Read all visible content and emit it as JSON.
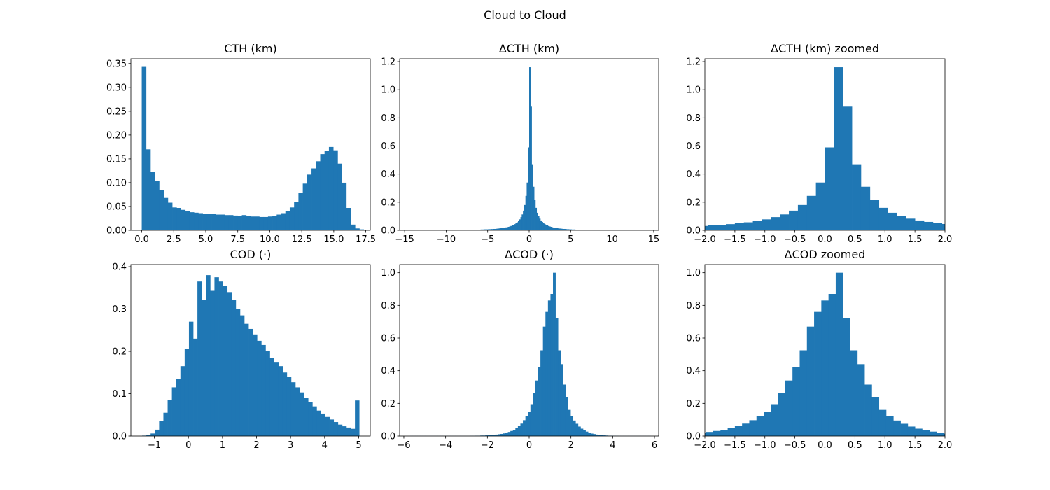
{
  "figure": {
    "title": "Cloud to Cloud"
  },
  "colors": {
    "bar": "#1f77b4",
    "axis": "#000000",
    "background": "#ffffff"
  },
  "chart_data": [
    {
      "type": "bar",
      "title": "CTH (km)",
      "xlim": [
        -0.85,
        17.85
      ],
      "ylim": [
        0,
        0.36
      ],
      "xticks": [
        0,
        2.5,
        5,
        7.5,
        10,
        12.5,
        15,
        17.5
      ],
      "xtick_labels": [
        "0.0",
        "2.5",
        "5.0",
        "7.5",
        "10.0",
        "12.5",
        "15.0",
        "17.5"
      ],
      "yticks": [
        0,
        0.05,
        0.1,
        0.15,
        0.2,
        0.25,
        0.3,
        0.35
      ],
      "ytick_labels": [
        "0.00",
        "0.05",
        "0.10",
        "0.15",
        "0.20",
        "0.25",
        "0.30",
        "0.35"
      ],
      "bin_start": 0,
      "bin_width": 0.34,
      "values": [
        0.343,
        0.17,
        0.123,
        0.103,
        0.085,
        0.068,
        0.058,
        0.048,
        0.047,
        0.043,
        0.04,
        0.038,
        0.037,
        0.036,
        0.035,
        0.035,
        0.034,
        0.033,
        0.033,
        0.032,
        0.032,
        0.031,
        0.03,
        0.032,
        0.03,
        0.029,
        0.029,
        0.028,
        0.028,
        0.029,
        0.03,
        0.033,
        0.036,
        0.04,
        0.048,
        0.06,
        0.078,
        0.098,
        0.117,
        0.13,
        0.145,
        0.16,
        0.167,
        0.175,
        0.168,
        0.14,
        0.1,
        0.047,
        0.012,
        0.004,
        0.002,
        0.001,
        0.0005,
        0.0003
      ]
    },
    {
      "type": "bar",
      "title": "ΔCTH (km)",
      "xlim": [
        -15.6,
        15.6
      ],
      "ylim": [
        0,
        1.22
      ],
      "xticks": [
        -15,
        -10,
        -5,
        0,
        5,
        10,
        15
      ],
      "xtick_labels": [
        "−15",
        "−10",
        "−5",
        "0",
        "5",
        "10",
        "15"
      ],
      "yticks": [
        0,
        0.2,
        0.4,
        0.6,
        0.8,
        1.0,
        1.2
      ],
      "ytick_labels": [
        "0.0",
        "0.2",
        "0.4",
        "0.6",
        "0.8",
        "1.0",
        "1.2"
      ],
      "bin_start": -14.25,
      "bin_width": 0.15,
      "values": [
        0.0005,
        0.0005,
        0.0005,
        0.0005,
        0.0005,
        0.0005,
        0.0005,
        0.0005,
        0.0005,
        0.0005,
        0.0005,
        0.0005,
        0.0005,
        0.0005,
        0.0005,
        0.0005,
        0.0005,
        0.0005,
        0.0005,
        0.0005,
        0.0005,
        0.0005,
        0.0005,
        0.0005,
        0.0005,
        0.0005,
        0.0005,
        0.0005,
        0.0005,
        0.0005,
        0.003,
        0.003,
        0.003,
        0.003,
        0.003,
        0.003,
        0.003,
        0.003,
        0.003,
        0.004,
        0.004,
        0.004,
        0.004,
        0.004,
        0.004,
        0.004,
        0.004,
        0.004,
        0.005,
        0.005,
        0.005,
        0.005,
        0.005,
        0.005,
        0.005,
        0.005,
        0.006,
        0.006,
        0.006,
        0.007,
        0.007,
        0.007,
        0.008,
        0.008,
        0.009,
        0.009,
        0.01,
        0.01,
        0.011,
        0.012,
        0.013,
        0.014,
        0.015,
        0.016,
        0.017,
        0.019,
        0.021,
        0.023,
        0.025,
        0.028,
        0.031,
        0.035,
        0.039,
        0.044,
        0.05,
        0.057,
        0.066,
        0.078,
        0.094,
        0.113,
        0.14,
        0.18,
        0.245,
        0.34,
        0.59,
        1.16,
        0.88,
        0.47,
        0.31,
        0.215,
        0.16,
        0.125,
        0.1,
        0.083,
        0.07,
        0.06,
        0.052,
        0.045,
        0.04,
        0.035,
        0.031,
        0.028,
        0.025,
        0.022,
        0.02,
        0.018,
        0.017,
        0.015,
        0.014,
        0.013,
        0.012,
        0.011,
        0.01,
        0.01,
        0.009,
        0.008,
        0.008,
        0.007,
        0.007,
        0.006,
        0.006,
        0.006,
        0.005,
        0.005,
        0.005,
        0.005,
        0.005,
        0.004,
        0.004,
        0.004,
        0.004,
        0.004,
        0.004,
        0.004,
        0.003,
        0.003,
        0.003,
        0.003,
        0.003,
        0.003,
        0.003,
        0.003,
        0.003,
        0.0005,
        0.0005,
        0.0005,
        0.0005,
        0.0005,
        0.0005,
        0.0005,
        0.0005,
        0.0005,
        0.0005,
        0.0005,
        0.0005,
        0.0005,
        0.0005,
        0.0005,
        0.0005,
        0.0005,
        0.0005,
        0.0005,
        0.0005,
        0.0005,
        0.0005,
        0.0005,
        0.0005,
        0.0005,
        0.0005,
        0.0005,
        0.0005,
        0.0005,
        0.0005
      ]
    },
    {
      "type": "bar",
      "title": "ΔCTH (km) zoomed",
      "xlim": [
        -2,
        2
      ],
      "ylim": [
        0,
        1.22
      ],
      "xticks": [
        -2,
        -1.5,
        -1,
        -0.5,
        0,
        0.5,
        1,
        1.5,
        2
      ],
      "xtick_labels": [
        "−2.0",
        "−1.5",
        "−1.0",
        "−0.5",
        "0.0",
        "0.5",
        "1.0",
        "1.5",
        "2.0"
      ],
      "yticks": [
        0,
        0.2,
        0.4,
        0.6,
        0.8,
        1.0,
        1.2
      ],
      "ytick_labels": [
        "0.0",
        "0.2",
        "0.4",
        "0.6",
        "0.8",
        "1.0",
        "1.2"
      ],
      "bin_start": -2.25,
      "bin_width": 0.15,
      "values": [
        0.028,
        0.031,
        0.035,
        0.039,
        0.044,
        0.05,
        0.057,
        0.066,
        0.078,
        0.094,
        0.113,
        0.14,
        0.18,
        0.245,
        0.34,
        0.59,
        1.16,
        0.88,
        0.47,
        0.31,
        0.215,
        0.16,
        0.125,
        0.1,
        0.083,
        0.07,
        0.06,
        0.052,
        0.045,
        0.04
      ]
    },
    {
      "type": "bar",
      "title": "COD (·)",
      "xlim": [
        -1.69,
        5.34
      ],
      "ylim": [
        0,
        0.405
      ],
      "xticks": [
        -1,
        0,
        1,
        2,
        3,
        4,
        5
      ],
      "xtick_labels": [
        "−1",
        "0",
        "1",
        "2",
        "3",
        "4",
        "5"
      ],
      "yticks": [
        0,
        0.1,
        0.2,
        0.3,
        0.4
      ],
      "ytick_labels": [
        "0.0",
        "0.1",
        "0.2",
        "0.3",
        "0.4"
      ],
      "bin_start": -1.36,
      "bin_width": 0.125,
      "values": [
        0.001,
        0.003,
        0.006,
        0.015,
        0.035,
        0.055,
        0.085,
        0.115,
        0.135,
        0.165,
        0.205,
        0.27,
        0.23,
        0.365,
        0.322,
        0.38,
        0.343,
        0.375,
        0.365,
        0.355,
        0.34,
        0.322,
        0.3,
        0.285,
        0.265,
        0.253,
        0.24,
        0.225,
        0.215,
        0.2,
        0.185,
        0.175,
        0.165,
        0.15,
        0.14,
        0.127,
        0.115,
        0.103,
        0.09,
        0.08,
        0.07,
        0.06,
        0.053,
        0.045,
        0.039,
        0.033,
        0.027,
        0.023,
        0.02,
        0.017,
        0.084
      ]
    },
    {
      "type": "bar",
      "title": "ΔCOD (·)",
      "xlim": [
        -6.2,
        6.2
      ],
      "ylim": [
        0,
        1.05
      ],
      "xticks": [
        -6,
        -4,
        -2,
        0,
        2,
        4,
        6
      ],
      "xtick_labels": [
        "−6",
        "−4",
        "−2",
        "0",
        "2",
        "4",
        "6"
      ],
      "yticks": [
        0,
        0.2,
        0.4,
        0.6,
        0.8,
        1.0
      ],
      "ytick_labels": [
        "0.0",
        "0.2",
        "0.4",
        "0.6",
        "0.8",
        "1.0"
      ],
      "bin_start": -5.7,
      "bin_width": 0.12,
      "values": [
        0.0005,
        0.0005,
        0.0005,
        0.0005,
        0.0005,
        0.0005,
        0.0005,
        0.0005,
        0.0005,
        0.0005,
        0.0005,
        0.0005,
        0.0005,
        0.0005,
        0.0005,
        0.0005,
        0.0005,
        0.0005,
        0.0005,
        0.0005,
        0.0005,
        0.0005,
        0.0005,
        0.0005,
        0.001,
        0.001,
        0.002,
        0.002,
        0.003,
        0.003,
        0.004,
        0.005,
        0.006,
        0.007,
        0.009,
        0.011,
        0.013,
        0.016,
        0.02,
        0.025,
        0.031,
        0.038,
        0.048,
        0.06,
        0.076,
        0.097,
        0.12,
        0.15,
        0.195,
        0.265,
        0.34,
        0.42,
        0.525,
        0.67,
        0.76,
        0.83,
        0.87,
        1.0,
        0.72,
        0.525,
        0.44,
        0.315,
        0.24,
        0.16,
        0.12,
        0.095,
        0.075,
        0.058,
        0.045,
        0.035,
        0.027,
        0.02,
        0.015,
        0.012,
        0.009,
        0.007,
        0.005,
        0.004,
        0.003,
        0.002,
        0.002,
        0.001,
        0.001,
        0.0005,
        0.0005,
        0.0005,
        0.0005,
        0.0005,
        0.0005,
        0.0005,
        0.0005,
        0.0005,
        0.0005,
        0.0005,
        0.0005,
        0.0005
      ]
    },
    {
      "type": "bar",
      "title": "ΔCOD zoomed",
      "xlim": [
        -2,
        2
      ],
      "ylim": [
        0,
        1.05
      ],
      "xticks": [
        -2,
        -1.5,
        -1,
        -0.5,
        0,
        0.5,
        1,
        1.5,
        2
      ],
      "xtick_labels": [
        "−2.0",
        "−1.5",
        "−1.0",
        "−0.5",
        "0.0",
        "0.5",
        "1.0",
        "1.5",
        "2.0"
      ],
      "yticks": [
        0,
        0.2,
        0.4,
        0.6,
        0.8,
        1.0
      ],
      "ytick_labels": [
        "0.0",
        "0.2",
        "0.4",
        "0.6",
        "0.8",
        "1.0"
      ],
      "bin_start": -2.1,
      "bin_width": 0.12,
      "values": [
        0.02,
        0.025,
        0.031,
        0.038,
        0.048,
        0.06,
        0.076,
        0.097,
        0.12,
        0.15,
        0.195,
        0.265,
        0.34,
        0.42,
        0.525,
        0.67,
        0.76,
        0.83,
        0.87,
        1.0,
        0.72,
        0.525,
        0.44,
        0.315,
        0.24,
        0.16,
        0.12,
        0.095,
        0.075,
        0.058,
        0.045,
        0.035,
        0.027,
        0.02,
        0.015
      ]
    }
  ]
}
